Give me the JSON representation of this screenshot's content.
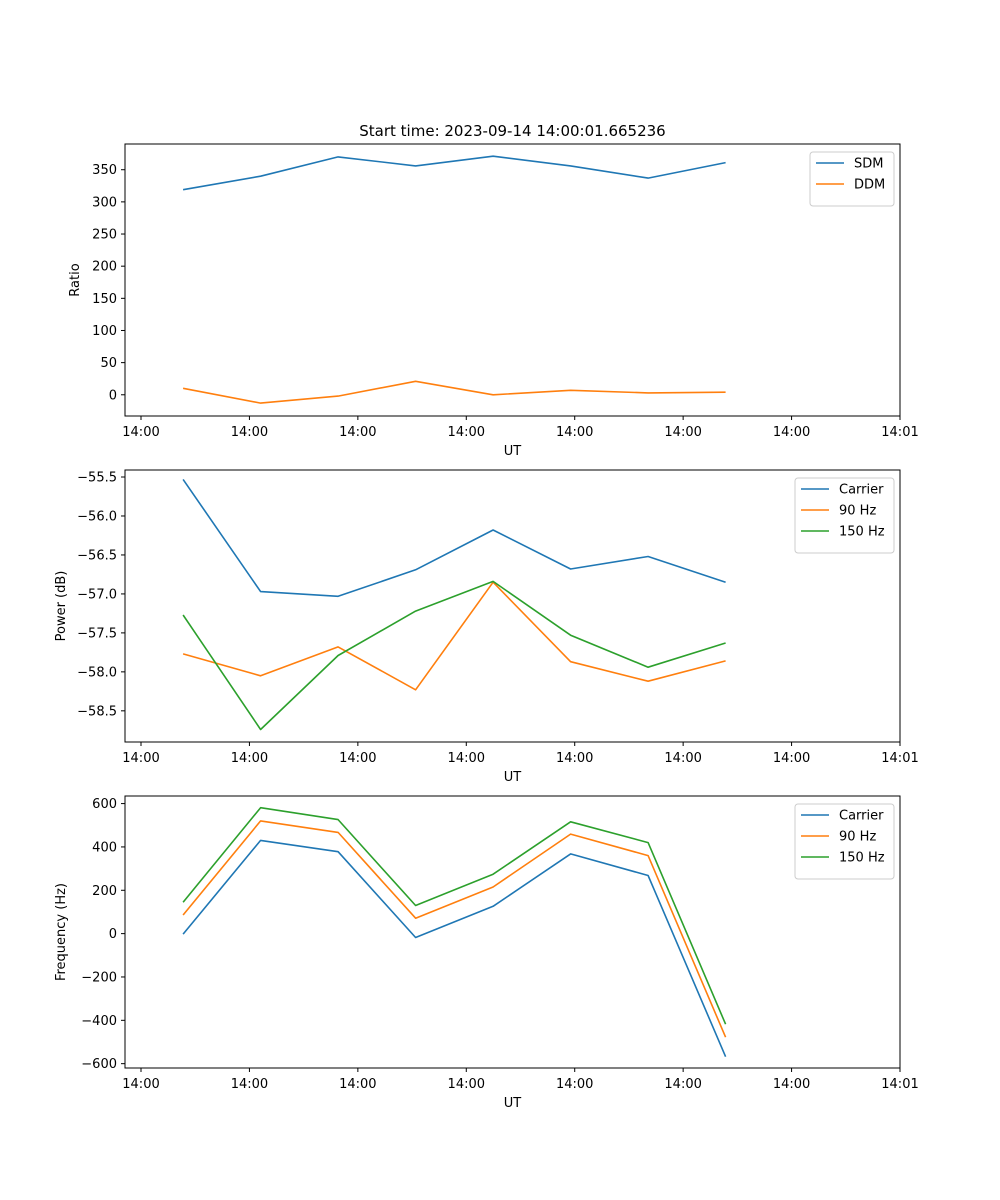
{
  "figure_title": "Start time: 2023-09-14 14:00:01.665236",
  "chart_data": [
    {
      "type": "line",
      "xlabel": "UT",
      "ylabel": "Ratio",
      "x_tick_labels": [
        "14:00",
        "14:00",
        "14:00",
        "14:00",
        "14:00",
        "14:00",
        "14:00",
        "14:01"
      ],
      "xlim": [
        0,
        1
      ],
      "x": [
        0.075,
        0.175,
        0.275,
        0.375,
        0.475,
        0.575,
        0.675,
        0.775
      ],
      "ylim": [
        -33,
        390
      ],
      "y_ticks": [
        0,
        50,
        100,
        150,
        200,
        250,
        300,
        350
      ],
      "y_tick_labels": [
        "0",
        "50",
        "100",
        "150",
        "200",
        "250",
        "300",
        "350"
      ],
      "legend_position": "upper-right",
      "series": [
        {
          "name": "SDM",
          "color": "#1f77b4",
          "values": [
            319,
            340,
            370,
            356,
            371,
            356,
            337,
            361
          ]
        },
        {
          "name": "DDM",
          "color": "#ff7f0e",
          "values": [
            10,
            -13,
            -2,
            21,
            0,
            7,
            3,
            4
          ]
        }
      ]
    },
    {
      "type": "line",
      "xlabel": "UT",
      "ylabel": "Power (dB)",
      "x_tick_labels": [
        "14:00",
        "14:00",
        "14:00",
        "14:00",
        "14:00",
        "14:00",
        "14:00",
        "14:01"
      ],
      "xlim": [
        0,
        1
      ],
      "x": [
        0.075,
        0.175,
        0.275,
        0.375,
        0.475,
        0.575,
        0.675,
        0.775
      ],
      "ylim": [
        -58.9,
        -55.41
      ],
      "y_ticks": [
        -58.5,
        -58.0,
        -57.5,
        -57.0,
        -56.5,
        -56.0,
        -55.5
      ],
      "y_tick_labels": [
        "−58.5",
        "−58.0",
        "−57.5",
        "−57.0",
        "−56.5",
        "−56.0",
        "−55.5"
      ],
      "legend_position": "upper-right",
      "series": [
        {
          "name": "Carrier",
          "color": "#1f77b4",
          "values": [
            -55.53,
            -56.97,
            -57.03,
            -56.69,
            -56.18,
            -56.68,
            -56.52,
            -56.85
          ]
        },
        {
          "name": "90 Hz",
          "color": "#ff7f0e",
          "values": [
            -57.77,
            -58.05,
            -57.68,
            -58.23,
            -56.85,
            -57.87,
            -58.12,
            -57.86
          ]
        },
        {
          "name": "150 Hz",
          "color": "#2ca02c",
          "values": [
            -57.27,
            -58.74,
            -57.79,
            -57.22,
            -56.84,
            -57.53,
            -57.94,
            -57.63
          ]
        }
      ]
    },
    {
      "type": "line",
      "xlabel": "UT",
      "ylabel": "Frequency (Hz)",
      "x_tick_labels": [
        "14:00",
        "14:00",
        "14:00",
        "14:00",
        "14:00",
        "14:00",
        "14:00",
        "14:01"
      ],
      "xlim": [
        0,
        1
      ],
      "x": [
        0.075,
        0.175,
        0.275,
        0.375,
        0.475,
        0.575,
        0.675,
        0.775
      ],
      "ylim": [
        -620,
        635
      ],
      "y_ticks": [
        -600,
        -400,
        -200,
        0,
        200,
        400,
        600
      ],
      "y_tick_labels": [
        "−600",
        "−400",
        "−200",
        "0",
        "200",
        "400",
        "600"
      ],
      "legend_position": "upper-right",
      "series": [
        {
          "name": "Carrier",
          "color": "#1f77b4",
          "values": [
            -2,
            430,
            378,
            -18,
            126,
            368,
            268,
            -568
          ]
        },
        {
          "name": "90 Hz",
          "color": "#ff7f0e",
          "values": [
            86,
            520,
            467,
            71,
            215,
            459,
            360,
            -478
          ]
        },
        {
          "name": "150 Hz",
          "color": "#2ca02c",
          "values": [
            145,
            581,
            526,
            130,
            274,
            516,
            420,
            -418
          ]
        }
      ]
    }
  ]
}
